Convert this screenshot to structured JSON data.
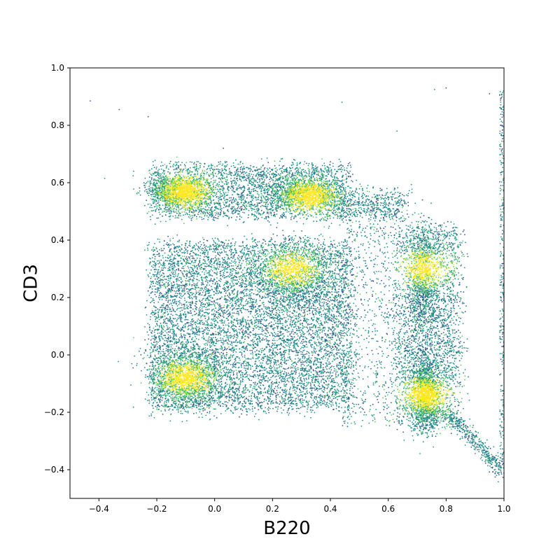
{
  "chart_data": {
    "type": "scatter",
    "title": "",
    "xlabel": "B220",
    "ylabel": "CD3",
    "xlim": [
      -0.5,
      1.0
    ],
    "ylim": [
      -0.5,
      1.0
    ],
    "grid": false,
    "xticks": [
      -0.4,
      -0.2,
      0.0,
      0.2,
      0.4,
      0.6,
      0.8,
      1.0
    ],
    "xtick_labels": [
      "−0.4",
      "−0.2",
      "0.0",
      "0.2",
      "0.4",
      "0.6",
      "0.8",
      "1.0"
    ],
    "yticks": [
      -0.4,
      -0.2,
      0.0,
      0.2,
      0.4,
      0.6,
      0.8,
      1.0
    ],
    "ytick_labels": [
      "−0.4",
      "−0.2",
      "0.0",
      "0.2",
      "0.4",
      "0.6",
      "0.8",
      "1.0"
    ],
    "colormap": [
      "#3b528b",
      "#21918c",
      "#5ec962",
      "#fde725"
    ],
    "clusters": [
      {
        "name": "CD3+ band",
        "x_range": [
          -0.22,
          0.46
        ],
        "y_range": [
          0.48,
          0.66
        ]
      },
      {
        "name": "double-negative block",
        "x_range": [
          -0.22,
          0.47
        ],
        "y_range": [
          -0.19,
          0.39
        ]
      },
      {
        "name": "B220+ column",
        "x_range": [
          0.64,
          0.84
        ],
        "y_range": [
          -0.24,
          0.44
        ]
      },
      {
        "name": "bridge",
        "x_range": [
          0.45,
          0.66
        ],
        "y_range": [
          0.48,
          0.56
        ]
      },
      {
        "name": "diagonal tail",
        "x_range": [
          0.8,
          1.0
        ],
        "y_range": [
          -0.42,
          -0.2
        ]
      },
      {
        "name": "right-edge streak",
        "x_range": [
          0.98,
          1.0
        ],
        "y_range": [
          -0.4,
          0.93
        ]
      }
    ],
    "density_peaks": [
      {
        "x": -0.1,
        "y": 0.57
      },
      {
        "x": 0.33,
        "y": 0.55
      },
      {
        "x": -0.1,
        "y": -0.08
      },
      {
        "x": 0.27,
        "y": 0.3
      },
      {
        "x": 0.73,
        "y": -0.14
      },
      {
        "x": 0.73,
        "y": 0.3
      }
    ],
    "outliers": [
      {
        "x": -0.43,
        "y": 0.885
      },
      {
        "x": -0.33,
        "y": 0.855
      },
      {
        "x": -0.23,
        "y": 0.83
      },
      {
        "x": 0.03,
        "y": 0.72
      },
      {
        "x": 0.44,
        "y": 0.88
      },
      {
        "x": 0.63,
        "y": 0.78
      },
      {
        "x": 0.76,
        "y": 0.925
      },
      {
        "x": 0.8,
        "y": 0.93
      },
      {
        "x": 0.95,
        "y": 0.91
      },
      {
        "x": -0.38,
        "y": 0.615
      },
      {
        "x": -0.28,
        "y": 0.64
      },
      {
        "x": -0.28,
        "y": 0.06
      }
    ]
  }
}
